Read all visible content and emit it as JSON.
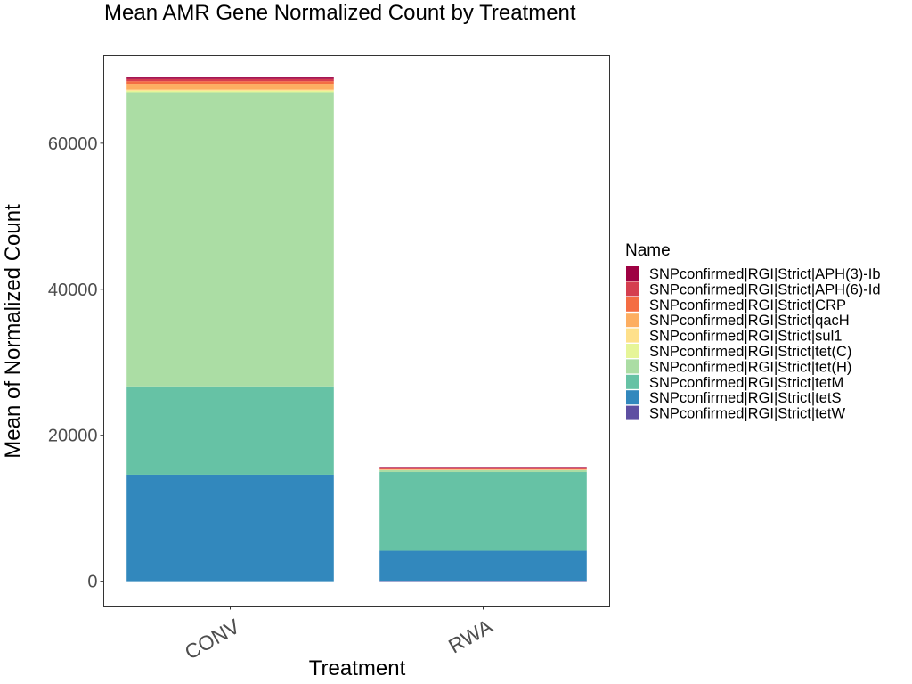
{
  "chart_data": {
    "type": "bar",
    "stacked": true,
    "title": "Mean AMR Gene Normalized Count by Treatment",
    "xlabel": "Treatment",
    "ylabel": "Mean of Normalized Count",
    "categories": [
      "CONV",
      "RWA"
    ],
    "ylim": [
      -3400,
      72000
    ],
    "yticks": [
      0,
      20000,
      40000,
      60000
    ],
    "ytick_labels": [
      "0",
      "20000",
      "40000",
      "60000"
    ],
    "legend_title": "Name",
    "legend_position": "right",
    "grid": false,
    "series": [
      {
        "name": "SNPconfirmed|RGI|Strict|tetW",
        "color": "#5e4fa2",
        "values": [
          0,
          60
        ]
      },
      {
        "name": "SNPconfirmed|RGI|Strict|tetS",
        "color": "#3288bd",
        "values": [
          14600,
          4100
        ]
      },
      {
        "name": "SNPconfirmed|RGI|Strict|tetM",
        "color": "#66c2a5",
        "values": [
          12100,
          10800
        ]
      },
      {
        "name": "SNPconfirmed|RGI|Strict|tet(H)",
        "color": "#abdda4",
        "values": [
          40300,
          250
        ]
      },
      {
        "name": "SNPconfirmed|RGI|Strict|tet(C)",
        "color": "#e6f598",
        "values": [
          200,
          20
        ]
      },
      {
        "name": "SNPconfirmed|RGI|Strict|sul1",
        "color": "#fee08b",
        "values": [
          150,
          20
        ]
      },
      {
        "name": "SNPconfirmed|RGI|Strict|qacH",
        "color": "#fdae61",
        "values": [
          800,
          50
        ]
      },
      {
        "name": "SNPconfirmed|RGI|Strict|CRP",
        "color": "#f46d43",
        "values": [
          350,
          80
        ]
      },
      {
        "name": "SNPconfirmed|RGI|Strict|APH(6)-Id",
        "color": "#d53e4f",
        "values": [
          300,
          150
        ]
      },
      {
        "name": "SNPconfirmed|RGI|Strict|APH(3)-Ib",
        "color": "#9e0142",
        "values": [
          200,
          120
        ]
      }
    ]
  }
}
